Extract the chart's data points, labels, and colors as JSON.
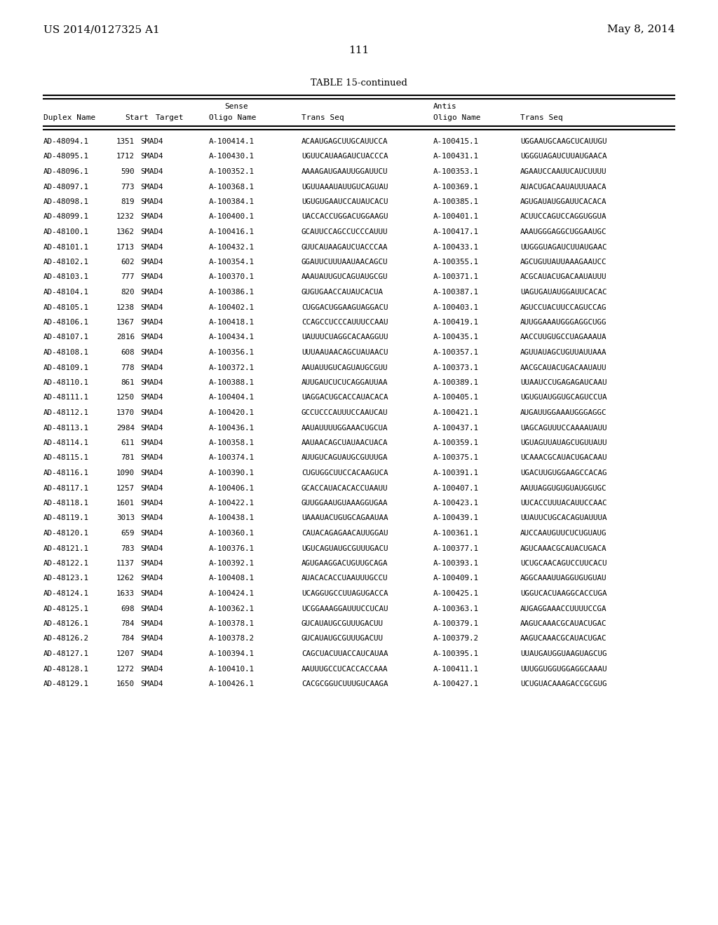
{
  "page_number": "111",
  "left_header": "US 2014/0127325 A1",
  "right_header": "May 8, 2014",
  "table_title": "TABLE 15-continued",
  "rows": [
    [
      "AD-48094.1",
      "1351",
      "SMAD4",
      "A-100414.1",
      "ACAAUGAGCUUGCAUUCCA",
      "A-100415.1",
      "UGGAAUGCAAGCUCAUUGU"
    ],
    [
      "AD-48095.1",
      "1712",
      "SMAD4",
      "A-100430.1",
      "UGUUCAUAAGAUCUACCCA",
      "A-100431.1",
      "UGGGUAGAUCUUAUGAACA"
    ],
    [
      "AD-48096.1",
      "590",
      "SMAD4",
      "A-100352.1",
      "AAAAGAUGAAUUGGAUUCU",
      "A-100353.1",
      "AGAAUCCAAUUCAUCUUUU"
    ],
    [
      "AD-48097.1",
      "773",
      "SMAD4",
      "A-100368.1",
      "UGUUAAAUAUUGUCAGUAU",
      "A-100369.1",
      "AUACUGACAAUAUUUAACA"
    ],
    [
      "AD-48098.1",
      "819",
      "SMAD4",
      "A-100384.1",
      "UGUGUGAAUCCAUAUCACU",
      "A-100385.1",
      "AGUGAUAUGGAUUCACACA"
    ],
    [
      "AD-48099.1",
      "1232",
      "SMAD4",
      "A-100400.1",
      "UACCACCUGGACUGGAAGU",
      "A-100401.1",
      "ACUUCCAGUCCAGGUGGUA"
    ],
    [
      "AD-48100.1",
      "1362",
      "SMAD4",
      "A-100416.1",
      "GCAUUCCAGCCUCCCAUUU",
      "A-100417.1",
      "AAAUGGGAGGCUGGAAUGC"
    ],
    [
      "AD-48101.1",
      "1713",
      "SMAD4",
      "A-100432.1",
      "GUUCAUAAGAUCUACCCAA",
      "A-100433.1",
      "UUGGGUAGAUCUUAUGAAC"
    ],
    [
      "AD-48102.1",
      "602",
      "SMAD4",
      "A-100354.1",
      "GGAUUCUUUAAUAACAGCU",
      "A-100355.1",
      "AGCUGUUAUUAAAGAAUCC"
    ],
    [
      "AD-48103.1",
      "777",
      "SMAD4",
      "A-100370.1",
      "AAAUAUUGUCAGUAUGCGU",
      "A-100371.1",
      "ACGCAUACUGACAAUAUUU"
    ],
    [
      "AD-48104.1",
      "820",
      "SMAD4",
      "A-100386.1",
      "GUGUGAACCAUAUCACUA",
      "A-100387.1",
      "UAGUGAUAUGGAUUCACAC"
    ],
    [
      "AD-48105.1",
      "1238",
      "SMAD4",
      "A-100402.1",
      "CUGGACUGGAAGUAGGACU",
      "A-100403.1",
      "AGUCCUACUUCCAGUCCAG"
    ],
    [
      "AD-48106.1",
      "1367",
      "SMAD4",
      "A-100418.1",
      "CCAGCCUCCCAUUUCCAAU",
      "A-100419.1",
      "AUUGGAAAUGGGAGGCUGG"
    ],
    [
      "AD-48107.1",
      "2816",
      "SMAD4",
      "A-100434.1",
      "UAUUUCUAGGCACAAGGUU",
      "A-100435.1",
      "AACCUUGUGCCUAGAAAUA"
    ],
    [
      "AD-48108.1",
      "608",
      "SMAD4",
      "A-100356.1",
      "UUUAAUAACAGCUAUAACU",
      "A-100357.1",
      "AGUUAUAGCUGUUAUUAAA"
    ],
    [
      "AD-48109.1",
      "778",
      "SMAD4",
      "A-100372.1",
      "AAUAUUGUCAGUAUGCGUU",
      "A-100373.1",
      "AACGCAUACUGACAAUAUU"
    ],
    [
      "AD-48110.1",
      "861",
      "SMAD4",
      "A-100388.1",
      "AUUGAUCUCUCAGGAUUAA",
      "A-100389.1",
      "UUAAUCCUGAGAGAUCAAU"
    ],
    [
      "AD-48111.1",
      "1250",
      "SMAD4",
      "A-100404.1",
      "UAGGACUGCACCAUACACA",
      "A-100405.1",
      "UGUGUAUGGUGCAGUCCUA"
    ],
    [
      "AD-48112.1",
      "1370",
      "SMAD4",
      "A-100420.1",
      "GCCUCCCAUUUCCAAUCAU",
      "A-100421.1",
      "AUGAUUGGAAAUGGGAGGC"
    ],
    [
      "AD-48113.1",
      "2984",
      "SMAD4",
      "A-100436.1",
      "AAUAUUUUGGAAACUGCUA",
      "A-100437.1",
      "UAGCAGUUUCCAAAAUAUU"
    ],
    [
      "AD-48114.1",
      "611",
      "SMAD4",
      "A-100358.1",
      "AAUAACAGCUAUAACUACA",
      "A-100359.1",
      "UGUAGUUAUAGCUGUUAUU"
    ],
    [
      "AD-48115.1",
      "781",
      "SMAD4",
      "A-100374.1",
      "AUUGUCAGUAUGCGUUUGA",
      "A-100375.1",
      "UCAAACGCAUACUGACAAU"
    ],
    [
      "AD-48116.1",
      "1090",
      "SMAD4",
      "A-100390.1",
      "CUGUGGCUUCCACAAGUCA",
      "A-100391.1",
      "UGACUUGUGGAAGCCACAG"
    ],
    [
      "AD-48117.1",
      "1257",
      "SMAD4",
      "A-100406.1",
      "GCACCAUACACACCUAAUU",
      "A-100407.1",
      "AAUUAGGUGUGUAUGGUGC"
    ],
    [
      "AD-48118.1",
      "1601",
      "SMAD4",
      "A-100422.1",
      "GUUGGAAUGUAAAGGUGAA",
      "A-100423.1",
      "UUCACCUUUACAUUCCAAC"
    ],
    [
      "AD-48119.1",
      "3013",
      "SMAD4",
      "A-100438.1",
      "UAAAUACUGUGCAGAAUAA",
      "A-100439.1",
      "UUAUUCUGCACAGUAUUUA"
    ],
    [
      "AD-48120.1",
      "659",
      "SMAD4",
      "A-100360.1",
      "CAUACAGAGAACAUUGGAU",
      "A-100361.1",
      "AUCCAAUGUUCUCUGUAUG"
    ],
    [
      "AD-48121.1",
      "783",
      "SMAD4",
      "A-100376.1",
      "UGUCAGUAUGCGUUUGACU",
      "A-100377.1",
      "AGUCAAACGCAUACUGACA"
    ],
    [
      "AD-48122.1",
      "1137",
      "SMAD4",
      "A-100392.1",
      "AGUGAAGGACUGUUGCAGA",
      "A-100393.1",
      "UCUGCAACAGUCCUUCACU"
    ],
    [
      "AD-48123.1",
      "1262",
      "SMAD4",
      "A-100408.1",
      "AUACACACCUAAUUUGCCU",
      "A-100409.1",
      "AGGCAAAUUAGGUGUGUAU"
    ],
    [
      "AD-48124.1",
      "1633",
      "SMAD4",
      "A-100424.1",
      "UCAGGUGCCUUAGUGACCA",
      "A-100425.1",
      "UGGUCACUAAGGCACCUGA"
    ],
    [
      "AD-48125.1",
      "698",
      "SMAD4",
      "A-100362.1",
      "UCGGAAAGGAUUUCCUCAU",
      "A-100363.1",
      "AUGAGGAAACCUUUUCCGA"
    ],
    [
      "AD-48126.1",
      "784",
      "SMAD4",
      "A-100378.1",
      "GUCAUAUGCGUUUGACUU",
      "A-100379.1",
      "AAGUCAAACGCAUACUGAC"
    ],
    [
      "AD-48126.2",
      "784",
      "SMAD4",
      "A-100378.2",
      "GUCAUAUGCGUUUGACUU",
      "A-100379.2",
      "AAGUCAAACGCAUACUGAC"
    ],
    [
      "AD-48127.1",
      "1207",
      "SMAD4",
      "A-100394.1",
      "CAGCUACUUACCAUCAUAA",
      "A-100395.1",
      "UUAUGAUGGUAAGUAGCUG"
    ],
    [
      "AD-48128.1",
      "1272",
      "SMAD4",
      "A-100410.1",
      "AAUUUGCCUCACCACCAAA",
      "A-100411.1",
      "UUUGGUGGUGGAGGCAAAU"
    ],
    [
      "AD-48129.1",
      "1650",
      "SMAD4",
      "A-100426.1",
      "CACGCGGUCUUUGUCAAGA",
      "A-100427.1",
      "UCUGUACAAAGACCGCGUG"
    ]
  ],
  "background": "#ffffff",
  "text_color": "#000000"
}
